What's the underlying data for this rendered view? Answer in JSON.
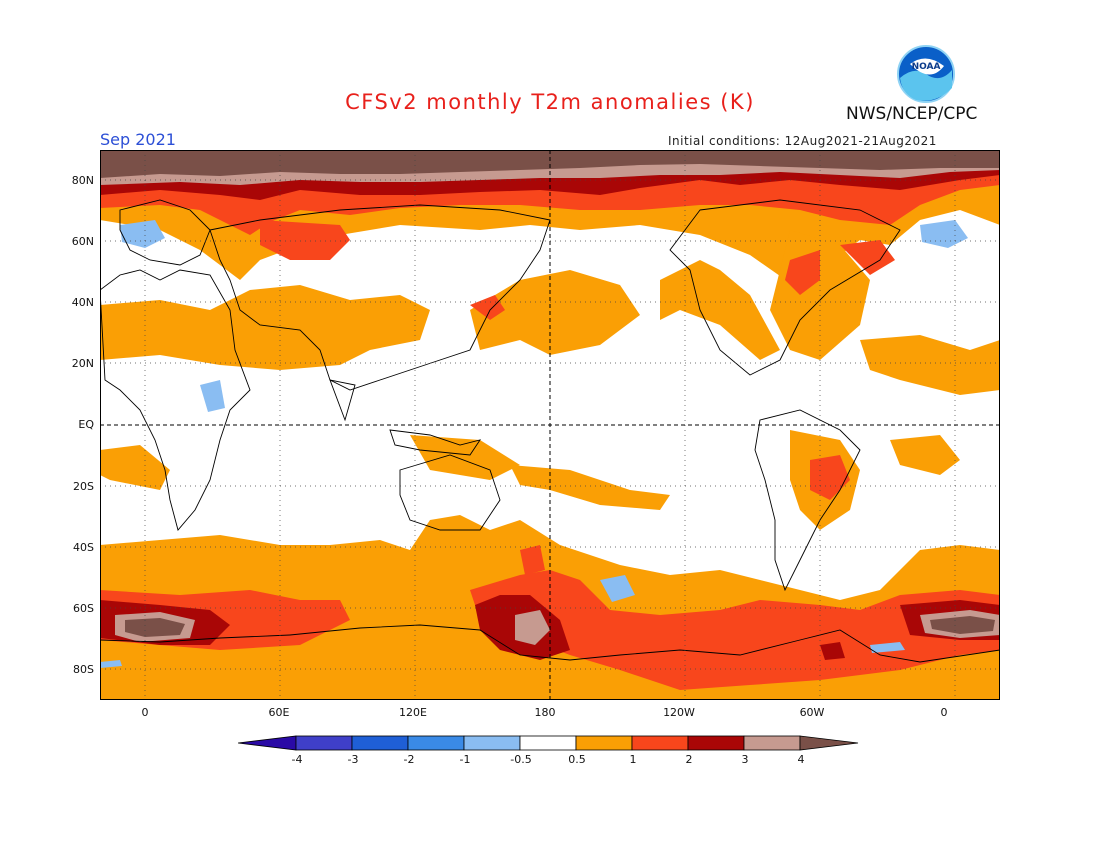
{
  "title": "CFSv2 monthly T2m anomalies (K)",
  "agency": "NWS/NCEP/CPC",
  "logo_text": "NOAA",
  "valid_month": "Sep 2021",
  "initial_conditions": "Initial conditions: 12Aug2021-21Aug2021",
  "map": {
    "projection": "equirectangular",
    "lon_range": [
      -20,
      380
    ],
    "lat_range": [
      -90,
      90
    ],
    "lat_labels": [
      "80N",
      "60N",
      "40N",
      "20N",
      "EQ",
      "20S",
      "40S",
      "60S",
      "80S"
    ],
    "lon_labels": [
      "0",
      "60E",
      "120E",
      "180",
      "120W",
      "60W",
      "0"
    ]
  },
  "colorbar": {
    "levels": [
      "-4",
      "-3",
      "-2",
      "-1",
      "-0.5",
      "0.5",
      "1",
      "2",
      "3",
      "4"
    ],
    "colors": [
      "#2a0aa6",
      "#3f3fc8",
      "#1f5fd6",
      "#3a8ae6",
      "#8abdf2",
      "#ffffff",
      "#fa9f05",
      "#f8461c",
      "#a90606",
      "#c69a90",
      "#7a5048"
    ]
  },
  "colors": {
    "warm_05_1": "#fa9f05",
    "warm_1_2": "#f8461c",
    "warm_2_3": "#a90606",
    "warm_3_4": "#c69a90",
    "warm_gt4": "#7a5048",
    "cool_05_1": "#8abdf2",
    "cool_1_2": "#3a8ae6"
  }
}
